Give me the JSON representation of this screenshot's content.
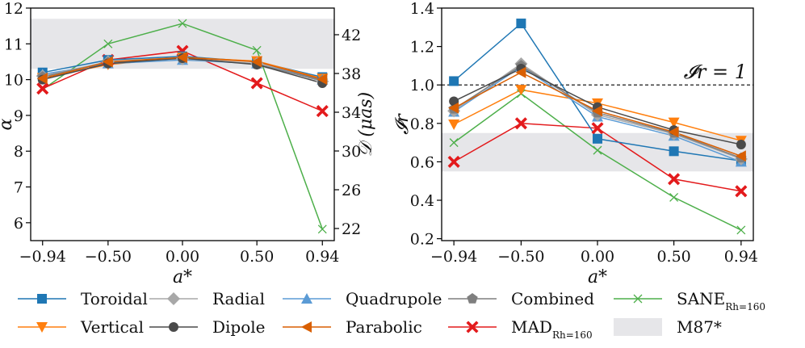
{
  "chart_data": [
    {
      "type": "line",
      "panel": "left",
      "x": [
        -0.94,
        -0.5,
        0.0,
        0.5,
        0.94
      ],
      "x_ticks": [
        "−0.94",
        "−0.50",
        "0.00",
        "0.50",
        "0.94"
      ],
      "xlabel": "a*",
      "ylabel": "α",
      "ylim": [
        5.5,
        12.0
      ],
      "y_ticks": [
        "6",
        "7",
        "8",
        "9",
        "10",
        "11",
        "12"
      ],
      "right_ylabel": "𝒟 (μas)",
      "right_ylim": [
        20.75,
        44.75
      ],
      "right_y_ticks": [
        "22",
        "26",
        "30",
        "34",
        "38",
        "42"
      ],
      "band": {
        "label": "M87*",
        "range": [
          10.3,
          11.7
        ]
      },
      "series": [
        {
          "name": "Toroidal",
          "values": [
            10.2,
            10.55,
            10.65,
            10.5,
            10.07
          ]
        },
        {
          "name": "Radial",
          "values": [
            10.1,
            10.5,
            10.58,
            10.45,
            9.95
          ]
        },
        {
          "name": "Quadrupole",
          "values": [
            10.15,
            10.45,
            10.55,
            10.45,
            10.0
          ]
        },
        {
          "name": "Combined",
          "values": [
            10.08,
            10.48,
            10.6,
            10.43,
            9.97
          ]
        },
        {
          "name": "Vertical",
          "values": [
            10.05,
            10.42,
            10.62,
            10.52,
            10.03
          ]
        },
        {
          "name": "Dipole",
          "values": [
            10.0,
            10.45,
            10.6,
            10.42,
            9.9
          ]
        },
        {
          "name": "Parabolic",
          "values": [
            10.03,
            10.5,
            10.62,
            10.5,
            10.01
          ]
        },
        {
          "name": "MAD",
          "values": [
            9.75,
            10.55,
            10.8,
            9.9,
            9.12
          ]
        },
        {
          "name": "SANE",
          "values": [
            9.72,
            11.0,
            11.57,
            10.82,
            5.82
          ]
        }
      ]
    },
    {
      "type": "line",
      "panel": "right",
      "x": [
        -0.94,
        -0.5,
        0.0,
        0.5,
        0.94
      ],
      "x_ticks": [
        "−0.94",
        "−0.50",
        "0.00",
        "0.50",
        "0.94"
      ],
      "xlabel": "a*",
      "ylabel": "𝓘r",
      "ylim": [
        0.19,
        1.4
      ],
      "y_ticks": [
        "0.2",
        "0.4",
        "0.6",
        "0.8",
        "1.0",
        "1.2",
        "1.4"
      ],
      "band": {
        "label": "M87*",
        "range": [
          0.55,
          0.75
        ]
      },
      "reference_line": {
        "value": 1.0,
        "label": "𝓘r = 1"
      },
      "series": [
        {
          "name": "Toroidal",
          "values": [
            1.02,
            1.32,
            0.72,
            0.655,
            0.605
          ]
        },
        {
          "name": "Radial",
          "values": [
            0.865,
            1.11,
            0.845,
            0.745,
            0.615
          ]
        },
        {
          "name": "Quadrupole",
          "values": [
            0.86,
            1.095,
            0.835,
            0.735,
            0.6
          ]
        },
        {
          "name": "Combined",
          "values": [
            0.875,
            1.1,
            0.855,
            0.75,
            0.62
          ]
        },
        {
          "name": "Vertical",
          "values": [
            0.795,
            0.975,
            0.905,
            0.805,
            0.71
          ]
        },
        {
          "name": "Dipole",
          "values": [
            0.915,
            1.085,
            0.885,
            0.765,
            0.69
          ]
        },
        {
          "name": "Parabolic",
          "values": [
            0.88,
            1.065,
            0.865,
            0.755,
            0.63
          ]
        },
        {
          "name": "MAD",
          "values": [
            0.6,
            0.8,
            0.775,
            0.51,
            0.447
          ]
        },
        {
          "name": "SANE",
          "values": [
            0.7,
            0.955,
            0.66,
            0.415,
            0.245
          ]
        }
      ]
    }
  ],
  "legend": {
    "placement": "bottom",
    "entries": [
      {
        "key": "Toroidal",
        "label": "Toroidal",
        "color": "#1f77b4",
        "marker": "square"
      },
      {
        "key": "Radial",
        "label": "Radial",
        "color": "#a8a8a8",
        "marker": "diamond"
      },
      {
        "key": "Quadrupole",
        "label": "Quadrupole",
        "color": "#5b9bd5",
        "marker": "triangle-up"
      },
      {
        "key": "Combined",
        "label": "Combined",
        "color": "#7f7f7f",
        "marker": "pentagon"
      },
      {
        "key": "SANE",
        "label": "SANE",
        "label_sub": "Rh=160",
        "color": "#4daf4a",
        "marker": "x"
      },
      {
        "key": "Vertical",
        "label": "Vertical",
        "color": "#ff7f0e",
        "marker": "triangle-down"
      },
      {
        "key": "Dipole",
        "label": "Dipole",
        "color": "#4a4a4a",
        "marker": "circle"
      },
      {
        "key": "Parabolic",
        "label": "Parabolic",
        "color": "#d95f02",
        "marker": "triangle-left"
      },
      {
        "key": "MAD",
        "label": "MAD",
        "label_sub": "Rh=160",
        "color": "#e31a1c",
        "marker": "x-bold"
      },
      {
        "key": "M87",
        "label": "M87*",
        "color": "#e6e6e9",
        "marker": "band"
      }
    ]
  }
}
